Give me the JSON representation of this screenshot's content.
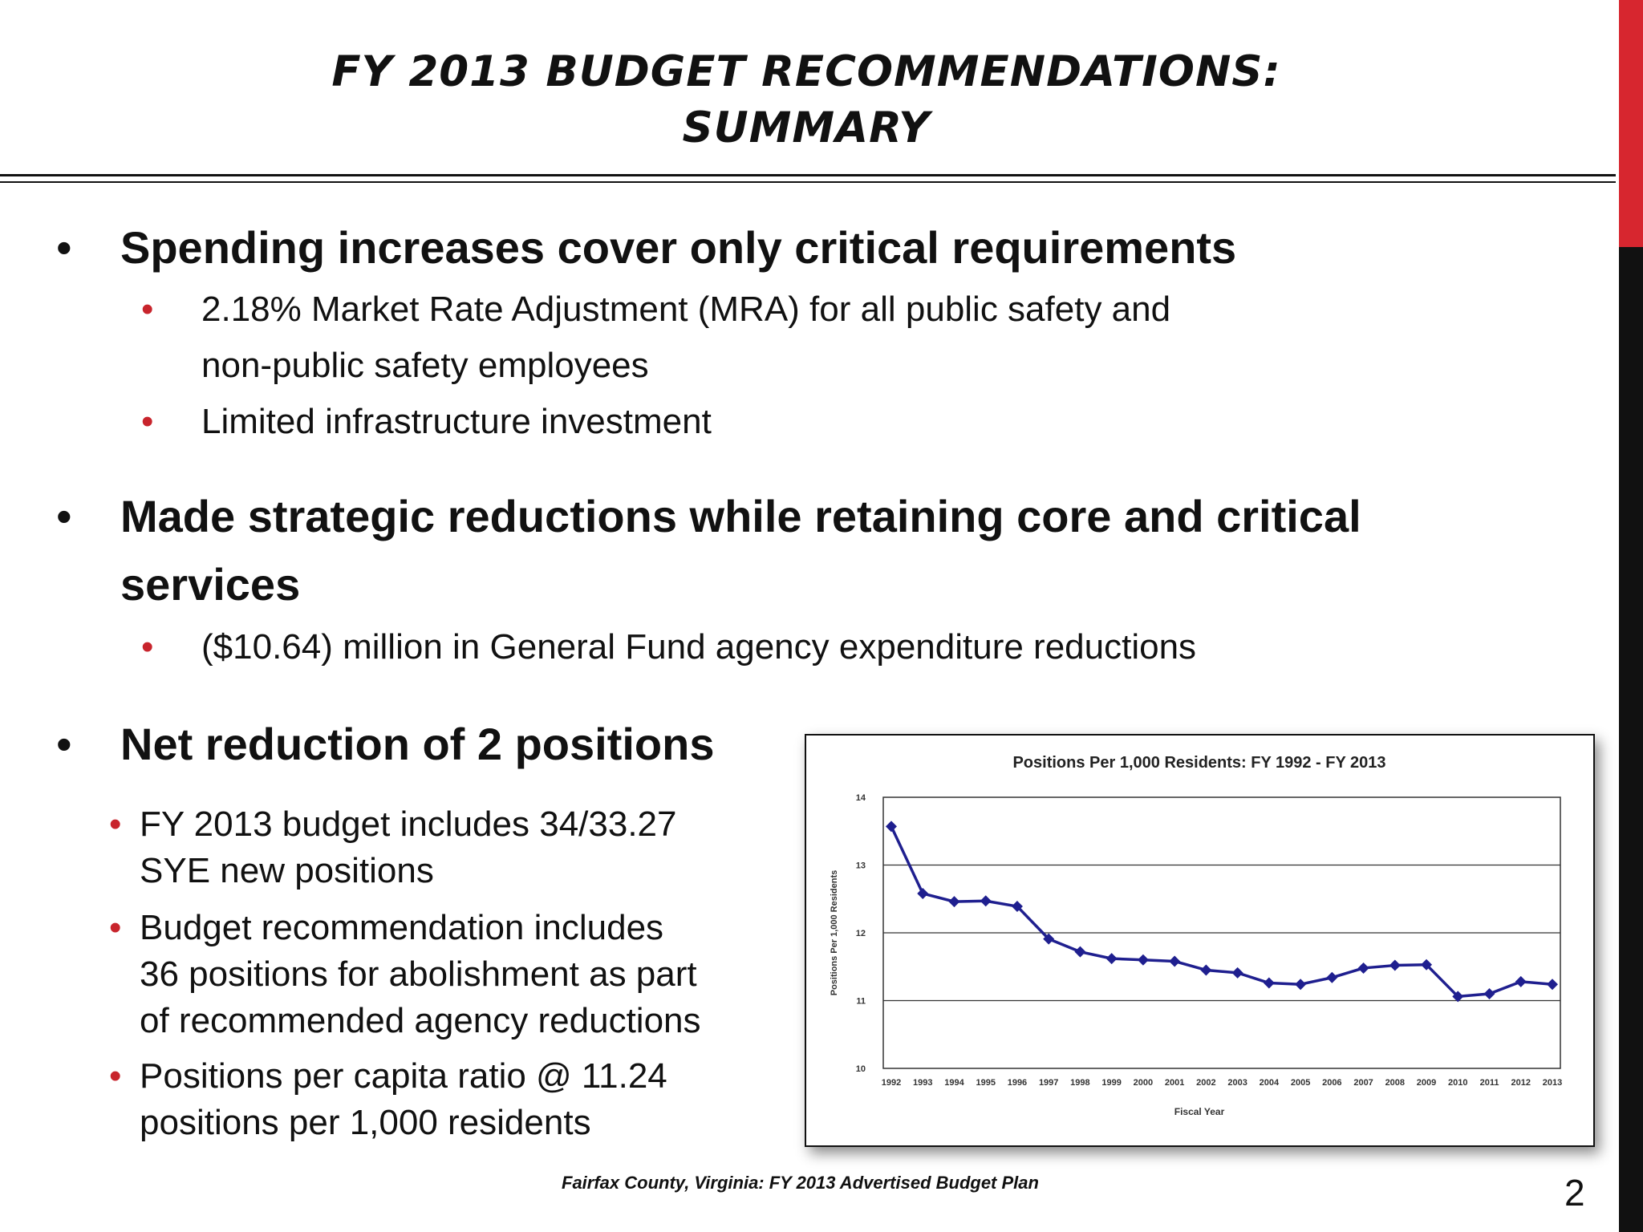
{
  "slide": {
    "title_line1": "FY 2013 BUDGET RECOMMENDATIONS:",
    "title_line2": "SUMMARY",
    "page_number": "2",
    "footer": "Fairfax County, Virginia: FY 2013 Advertised Budget Plan"
  },
  "bullets": {
    "b1": "Spending increases cover only critical requirements",
    "b1_sub1_line1": "2.18% Market Rate Adjustment (MRA) for all public safety and",
    "b1_sub1_line2": "non-public safety employees",
    "b1_sub2": "Limited infrastructure investment",
    "b2_line1": "Made strategic reductions while retaining core and critical",
    "b2_line2": "services",
    "b2_sub1": "($10.64) million in General Fund agency expenditure reductions",
    "b3": "Net reduction of 2 positions",
    "b3_sub1_line1": "FY 2013 budget includes 34/33.27",
    "b3_sub1_line2": "SYE new positions",
    "b3_sub2_line1": "Budget recommendation includes",
    "b3_sub2_line2": "36 positions for abolishment as part",
    "b3_sub2_line3": "of recommended agency reductions",
    "b3_sub3_line1": "Positions per capita ratio @ 11.24",
    "b3_sub3_line2": "positions per 1,000 residents",
    "bullet_glyph": "•"
  },
  "colors": {
    "accent_red": "#c8242c",
    "series_color": "#1f1f8f"
  },
  "chart_data": {
    "type": "line",
    "title": "Positions Per 1,000 Residents: FY 1992 - FY 2013",
    "xlabel": "Fiscal Year",
    "ylabel": "Positions Per 1,000 Residents",
    "ylim": [
      10,
      14
    ],
    "yticks": [
      10,
      11,
      12,
      13,
      14
    ],
    "grid": true,
    "legend": "none",
    "categories": [
      "1992",
      "1993",
      "1994",
      "1995",
      "1996",
      "1997",
      "1998",
      "1999",
      "2000",
      "2001",
      "2002",
      "2003",
      "2004",
      "2005",
      "2006",
      "2007",
      "2008",
      "2009",
      "2010",
      "2011",
      "2012",
      "2013"
    ],
    "values": [
      13.57,
      12.58,
      12.46,
      12.47,
      12.39,
      11.91,
      11.72,
      11.62,
      11.6,
      11.58,
      11.45,
      11.41,
      11.26,
      11.24,
      11.34,
      11.48,
      11.52,
      11.53,
      11.06,
      11.1,
      11.28,
      11.24
    ]
  }
}
